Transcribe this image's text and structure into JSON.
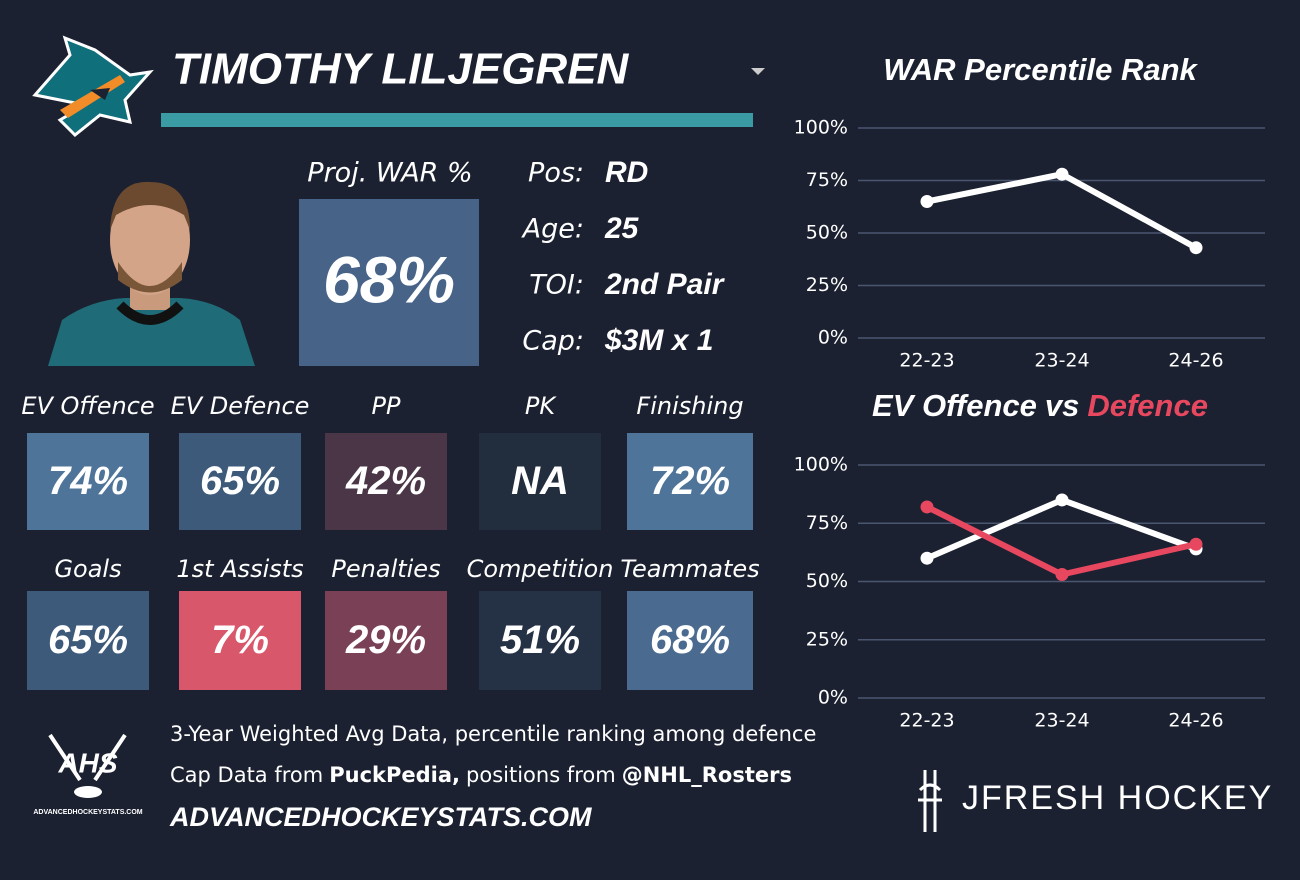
{
  "header": {
    "name": "TIMOTHY LILJEGREN"
  },
  "projection": {
    "label": "Proj. WAR %",
    "value": "68%",
    "color": "#476488"
  },
  "bio": [
    {
      "label": "Pos:",
      "value": "RD"
    },
    {
      "label": "Age:",
      "value": "25"
    },
    {
      "label": "TOI:",
      "value": "2nd Pair"
    },
    {
      "label": "Cap:",
      "value": "$3M x 1"
    }
  ],
  "tiles": [
    {
      "label": "EV Offence",
      "value": "74%",
      "color": "#4e7499"
    },
    {
      "label": "EV Defence",
      "value": "65%",
      "color": "#3d5a7a"
    },
    {
      "label": "PP",
      "value": "42%",
      "color": "#4a3646"
    },
    {
      "label": "PK",
      "value": "NA",
      "color": "#222d3d"
    },
    {
      "label": "Finishing",
      "value": "72%",
      "color": "#4e7499"
    },
    {
      "label": "Goals",
      "value": "65%",
      "color": "#3d5a7a"
    },
    {
      "label": "1st Assists",
      "value": "7%",
      "color": "#d9576a"
    },
    {
      "label": "Penalties",
      "value": "29%",
      "color": "#7a4055"
    },
    {
      "label": "Competition",
      "value": "51%",
      "color": "#253246"
    },
    {
      "label": "Teammates",
      "value": "68%",
      "color": "#4a6b8f"
    }
  ],
  "footer": {
    "line1": "3-Year Weighted Avg Data, percentile ranking among defence",
    "line2": [
      "Cap Data from",
      "PuckPedia,",
      "positions from",
      "@NHL_Rosters"
    ],
    "site": "ADVANCEDHOCKEYSTATS.COM",
    "ahs": "AHS",
    "ahs_site": "ADVANCEDHOCKEYSTATS.COM",
    "brand": "JFRESH HOCKEY"
  },
  "chart_data": [
    {
      "type": "line",
      "title": "WAR Percentile Rank",
      "categories": [
        "22-23",
        "23-24",
        "24-26"
      ],
      "values": [
        65,
        78,
        43
      ],
      "color": "#ffffff",
      "ylim": [
        0,
        100
      ],
      "yticks": [
        {
          "value": 0,
          "label": "0%"
        },
        {
          "value": 25,
          "label": "25%"
        },
        {
          "value": 50,
          "label": "50%"
        },
        {
          "value": 75,
          "label": "75%"
        },
        {
          "value": 100,
          "label": "100%"
        }
      ],
      "grid": true
    },
    {
      "type": "line",
      "title_joiner": "vs",
      "categories": [
        "22-23",
        "23-24",
        "24-26"
      ],
      "series": [
        {
          "name": "EV Offence",
          "color": "#ffffff",
          "values": [
            60,
            85,
            64
          ]
        },
        {
          "name": "Defence",
          "color": "#e8485f",
          "values": [
            82,
            53,
            66
          ]
        }
      ],
      "ylim": [
        0,
        100
      ],
      "yticks": [
        {
          "value": 0,
          "label": "0%"
        },
        {
          "value": 25,
          "label": "25%"
        },
        {
          "value": 50,
          "label": "50%"
        },
        {
          "value": 75,
          "label": "75%"
        },
        {
          "value": 100,
          "label": "100%"
        }
      ],
      "grid": true
    }
  ]
}
